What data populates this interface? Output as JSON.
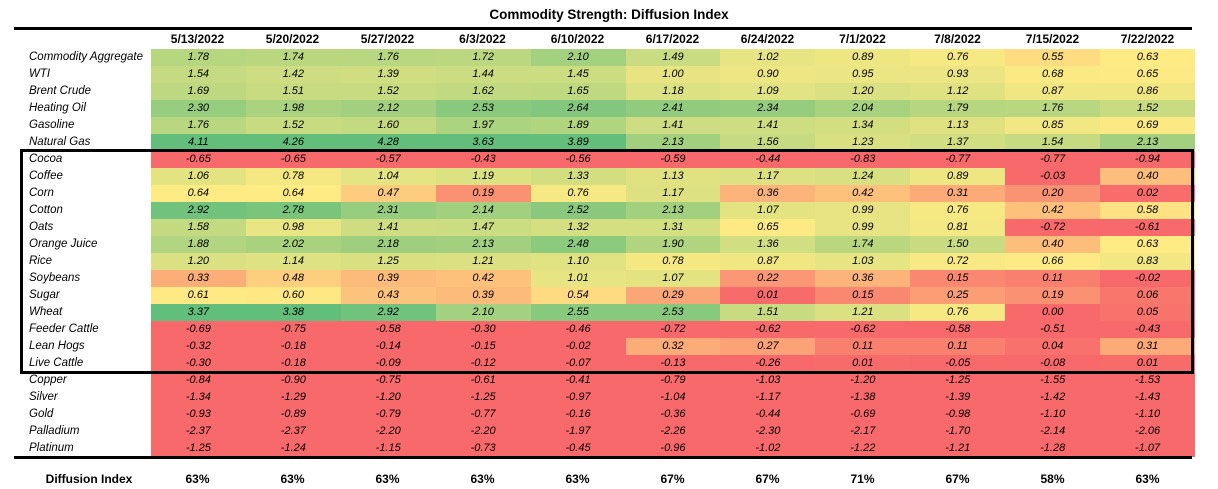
{
  "title": "Commodity Strength: Diffusion Index",
  "chart_data": {
    "type": "heatmap",
    "title": "Commodity Strength: Diffusion Index",
    "columns": [
      "5/13/2022",
      "5/20/2022",
      "5/27/2022",
      "6/3/2022",
      "6/10/2022",
      "6/17/2022",
      "6/24/2022",
      "7/1/2022",
      "7/8/2022",
      "7/15/2022",
      "7/22/2022"
    ],
    "rows": [
      {
        "label": "Commodity Aggregate",
        "values": [
          1.78,
          1.74,
          1.76,
          1.72,
          2.1,
          1.49,
          1.02,
          0.89,
          0.76,
          0.55,
          0.63
        ]
      },
      {
        "label": "WTI",
        "values": [
          1.54,
          1.42,
          1.39,
          1.44,
          1.45,
          1.0,
          0.9,
          0.95,
          0.93,
          0.68,
          0.65
        ]
      },
      {
        "label": "Brent Crude",
        "values": [
          1.69,
          1.51,
          1.52,
          1.62,
          1.65,
          1.18,
          1.09,
          1.2,
          1.12,
          0.87,
          0.86
        ]
      },
      {
        "label": "Heating Oil",
        "values": [
          2.3,
          1.98,
          2.12,
          2.53,
          2.64,
          2.41,
          2.34,
          2.04,
          1.79,
          1.76,
          1.52
        ]
      },
      {
        "label": "Gasoline",
        "values": [
          1.76,
          1.52,
          1.6,
          1.97,
          1.89,
          1.41,
          1.41,
          1.34,
          1.13,
          0.85,
          0.69
        ]
      },
      {
        "label": "Natural Gas",
        "values": [
          4.11,
          4.26,
          4.28,
          3.63,
          3.89,
          2.13,
          1.56,
          1.23,
          1.37,
          1.54,
          2.13
        ]
      },
      {
        "label": "Cocoa",
        "values": [
          -0.65,
          -0.65,
          -0.57,
          -0.43,
          -0.56,
          -0.59,
          -0.44,
          -0.83,
          -0.77,
          -0.77,
          -0.94
        ]
      },
      {
        "label": "Coffee",
        "values": [
          1.06,
          0.78,
          1.04,
          1.19,
          1.33,
          1.13,
          1.17,
          1.24,
          0.89,
          -0.03,
          0.4
        ]
      },
      {
        "label": "Corn",
        "values": [
          0.64,
          0.64,
          0.47,
          0.19,
          0.76,
          1.17,
          0.36,
          0.42,
          0.31,
          0.2,
          0.02
        ]
      },
      {
        "label": "Cotton",
        "values": [
          2.92,
          2.78,
          2.31,
          2.14,
          2.52,
          2.13,
          1.07,
          0.99,
          0.76,
          0.42,
          0.58
        ]
      },
      {
        "label": "Oats",
        "values": [
          1.58,
          0.98,
          1.41,
          1.47,
          1.32,
          1.31,
          0.65,
          0.99,
          0.81,
          -0.72,
          -0.61
        ]
      },
      {
        "label": "Orange Juice",
        "values": [
          1.88,
          2.02,
          2.18,
          2.13,
          2.48,
          1.9,
          1.36,
          1.74,
          1.5,
          0.4,
          0.63
        ]
      },
      {
        "label": "Rice",
        "values": [
          1.2,
          1.14,
          1.25,
          1.21,
          1.1,
          0.78,
          0.87,
          1.03,
          0.72,
          0.66,
          0.83
        ]
      },
      {
        "label": "Soybeans",
        "values": [
          0.33,
          0.48,
          0.39,
          0.42,
          1.01,
          1.07,
          0.22,
          0.36,
          0.15,
          0.11,
          -0.02
        ]
      },
      {
        "label": "Sugar",
        "values": [
          0.61,
          0.6,
          0.43,
          0.39,
          0.54,
          0.29,
          0.01,
          0.15,
          0.25,
          0.19,
          0.06
        ]
      },
      {
        "label": "Wheat",
        "values": [
          3.37,
          3.38,
          2.92,
          2.1,
          2.55,
          2.53,
          1.51,
          1.21,
          0.76,
          0.0,
          0.05
        ]
      },
      {
        "label": "Feeder Cattle",
        "values": [
          -0.69,
          -0.75,
          -0.58,
          -0.3,
          -0.46,
          -0.72,
          -0.62,
          -0.62,
          -0.58,
          -0.51,
          -0.43
        ]
      },
      {
        "label": "Lean Hogs",
        "values": [
          -0.32,
          -0.18,
          -0.14,
          -0.15,
          -0.02,
          0.32,
          0.27,
          0.11,
          0.11,
          0.04,
          0.31
        ]
      },
      {
        "label": "Live Cattle",
        "values": [
          -0.3,
          -0.18,
          -0.09,
          -0.12,
          -0.07,
          -0.13,
          -0.26,
          0.01,
          -0.05,
          -0.08,
          0.01
        ]
      },
      {
        "label": "Copper",
        "values": [
          -0.84,
          -0.9,
          -0.75,
          -0.61,
          -0.41,
          -0.79,
          -1.03,
          -1.2,
          -1.25,
          -1.55,
          -1.53
        ]
      },
      {
        "label": "Silver",
        "values": [
          -1.34,
          -1.29,
          -1.2,
          -1.25,
          -0.97,
          -1.04,
          -1.17,
          -1.38,
          -1.39,
          -1.42,
          -1.43
        ]
      },
      {
        "label": "Gold",
        "values": [
          -0.93,
          -0.89,
          -0.79,
          -0.77,
          -0.16,
          -0.36,
          -0.44,
          -0.69,
          -0.98,
          -1.1,
          -1.1
        ]
      },
      {
        "label": "Palladium",
        "values": [
          -2.37,
          -2.37,
          -2.2,
          -2.2,
          -1.97,
          -2.26,
          -2.3,
          -2.17,
          -1.7,
          -2.14,
          -2.06
        ]
      },
      {
        "label": "Platinum",
        "values": [
          -1.25,
          -1.24,
          -1.15,
          -0.73,
          -0.45,
          -0.96,
          -1.02,
          -1.22,
          -1.21,
          -1.28,
          -1.07
        ]
      }
    ],
    "footer": {
      "label": "Diffusion Index",
      "values": [
        "63%",
        "63%",
        "63%",
        "63%",
        "63%",
        "67%",
        "67%",
        "71%",
        "67%",
        "58%",
        "63%"
      ]
    },
    "highlight_box_rows": [
      "Cocoa",
      "Live Cattle"
    ],
    "color_scale": {
      "min_color": "#F8696B",
      "mid_color": "#FFEB84",
      "max_color": "#63BE7B",
      "min_value": 0,
      "mid_value": 0.62,
      "max_value": 3.15
    },
    "layout": {
      "legend": "none",
      "grid": false
    }
  }
}
